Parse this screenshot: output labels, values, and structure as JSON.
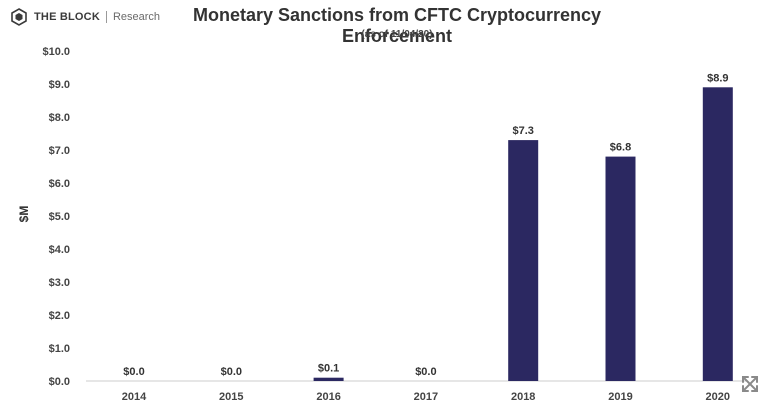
{
  "header": {
    "brand": "THE BLOCK",
    "brand_sub": "Research",
    "logo_icon": "cube-logo-icon",
    "title": "Monetary Sanctions from CFTC Cryptocurrency Enforcement",
    "subtitle": "(as of 11/04/20)",
    "expand_icon": "expand-arrows-icon"
  },
  "colors": {
    "bar": "#2b2861",
    "text": "#333333",
    "axis": "#444444",
    "grid": "#e6e6e6"
  },
  "chart_data": {
    "type": "bar",
    "title": "Monetary Sanctions from CFTC Cryptocurrency Enforcement",
    "subtitle": "(as of 11/04/20)",
    "xlabel": "",
    "ylabel": "$M",
    "categories": [
      "2014",
      "2015",
      "2016",
      "2017",
      "2018",
      "2019",
      "2020"
    ],
    "values": [
      0.0,
      0.0,
      0.1,
      0.0,
      7.3,
      6.8,
      8.9
    ],
    "data_labels": [
      "$0.0",
      "$0.0",
      "$0.1",
      "$0.0",
      "$7.3",
      "$6.8",
      "$8.9"
    ],
    "ylim": [
      0,
      10
    ],
    "yticks": [
      "$0.0",
      "$1.0",
      "$2.0",
      "$3.0",
      "$4.0",
      "$5.0",
      "$6.0",
      "$7.0",
      "$8.0",
      "$9.0",
      "$10.0"
    ],
    "grid": false,
    "legend": "none"
  }
}
